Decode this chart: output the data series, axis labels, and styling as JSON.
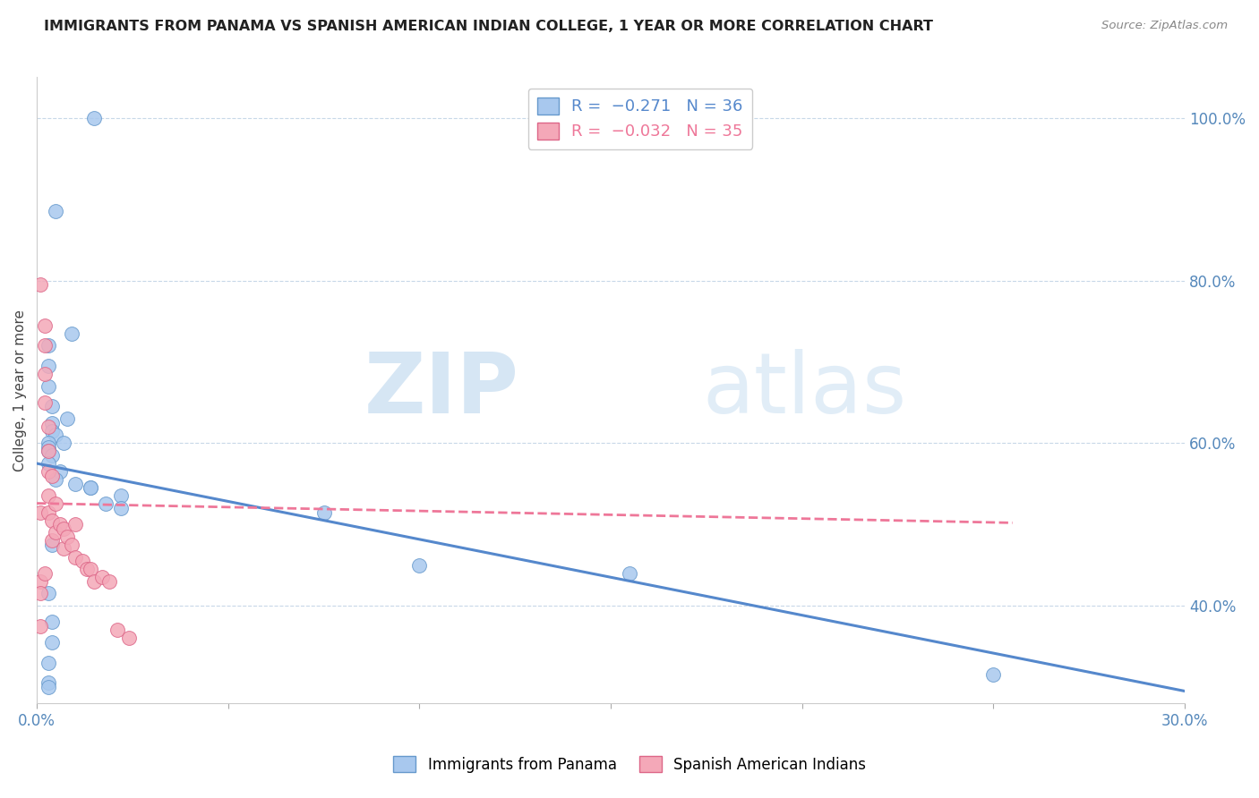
{
  "title": "IMMIGRANTS FROM PANAMA VS SPANISH AMERICAN INDIAN COLLEGE, 1 YEAR OR MORE CORRELATION CHART",
  "source": "Source: ZipAtlas.com",
  "ylabel": "College, 1 year or more",
  "xlim": [
    0.0,
    0.3
  ],
  "ylim": [
    0.28,
    1.05
  ],
  "xticks": [
    0.0,
    0.05,
    0.1,
    0.15,
    0.2,
    0.25,
    0.3
  ],
  "xticklabels": [
    "0.0%",
    "",
    "",
    "",
    "",
    "",
    "30.0%"
  ],
  "yticks_right": [
    1.0,
    0.8,
    0.6,
    0.4
  ],
  "yticklabels_right": [
    "100.0%",
    "80.0%",
    "60.0%",
    "40.0%"
  ],
  "blue_color": "#A8C8EE",
  "pink_color": "#F4A8B8",
  "blue_edge_color": "#6699CC",
  "pink_edge_color": "#DD6688",
  "blue_line_color": "#5588CC",
  "pink_line_color": "#EE7799",
  "watermark_zip": "ZIP",
  "watermark_atlas": "atlas",
  "watermark_color": "#D8EAF8",
  "blue_scatter_x": [
    0.015,
    0.005,
    0.009,
    0.003,
    0.003,
    0.003,
    0.004,
    0.008,
    0.004,
    0.004,
    0.005,
    0.003,
    0.003,
    0.003,
    0.004,
    0.003,
    0.006,
    0.01,
    0.014,
    0.022,
    0.018,
    0.022,
    0.075,
    0.1,
    0.155,
    0.004,
    0.004,
    0.004,
    0.003,
    0.003,
    0.003,
    0.25,
    0.003,
    0.005,
    0.007,
    0.014
  ],
  "blue_scatter_y": [
    1.0,
    0.885,
    0.735,
    0.72,
    0.695,
    0.67,
    0.645,
    0.63,
    0.625,
    0.615,
    0.61,
    0.6,
    0.595,
    0.59,
    0.585,
    0.575,
    0.565,
    0.55,
    0.545,
    0.535,
    0.525,
    0.52,
    0.515,
    0.45,
    0.44,
    0.475,
    0.38,
    0.355,
    0.33,
    0.305,
    0.3,
    0.315,
    0.415,
    0.555,
    0.6,
    0.545
  ],
  "pink_scatter_x": [
    0.001,
    0.001,
    0.001,
    0.001,
    0.002,
    0.002,
    0.002,
    0.002,
    0.003,
    0.003,
    0.003,
    0.003,
    0.003,
    0.004,
    0.004,
    0.004,
    0.005,
    0.005,
    0.006,
    0.007,
    0.007,
    0.008,
    0.009,
    0.01,
    0.01,
    0.012,
    0.013,
    0.014,
    0.015,
    0.017,
    0.019,
    0.021,
    0.024,
    0.001,
    0.002
  ],
  "pink_scatter_y": [
    0.795,
    0.515,
    0.43,
    0.375,
    0.745,
    0.72,
    0.685,
    0.65,
    0.62,
    0.59,
    0.565,
    0.535,
    0.515,
    0.56,
    0.505,
    0.48,
    0.525,
    0.49,
    0.5,
    0.495,
    0.47,
    0.485,
    0.475,
    0.46,
    0.5,
    0.455,
    0.445,
    0.445,
    0.43,
    0.435,
    0.43,
    0.37,
    0.36,
    0.415,
    0.44
  ],
  "blue_line_x": [
    0.0,
    0.3
  ],
  "blue_line_y": [
    0.575,
    0.295
  ],
  "pink_line_x": [
    0.0,
    0.255
  ],
  "pink_line_y": [
    0.526,
    0.502
  ]
}
